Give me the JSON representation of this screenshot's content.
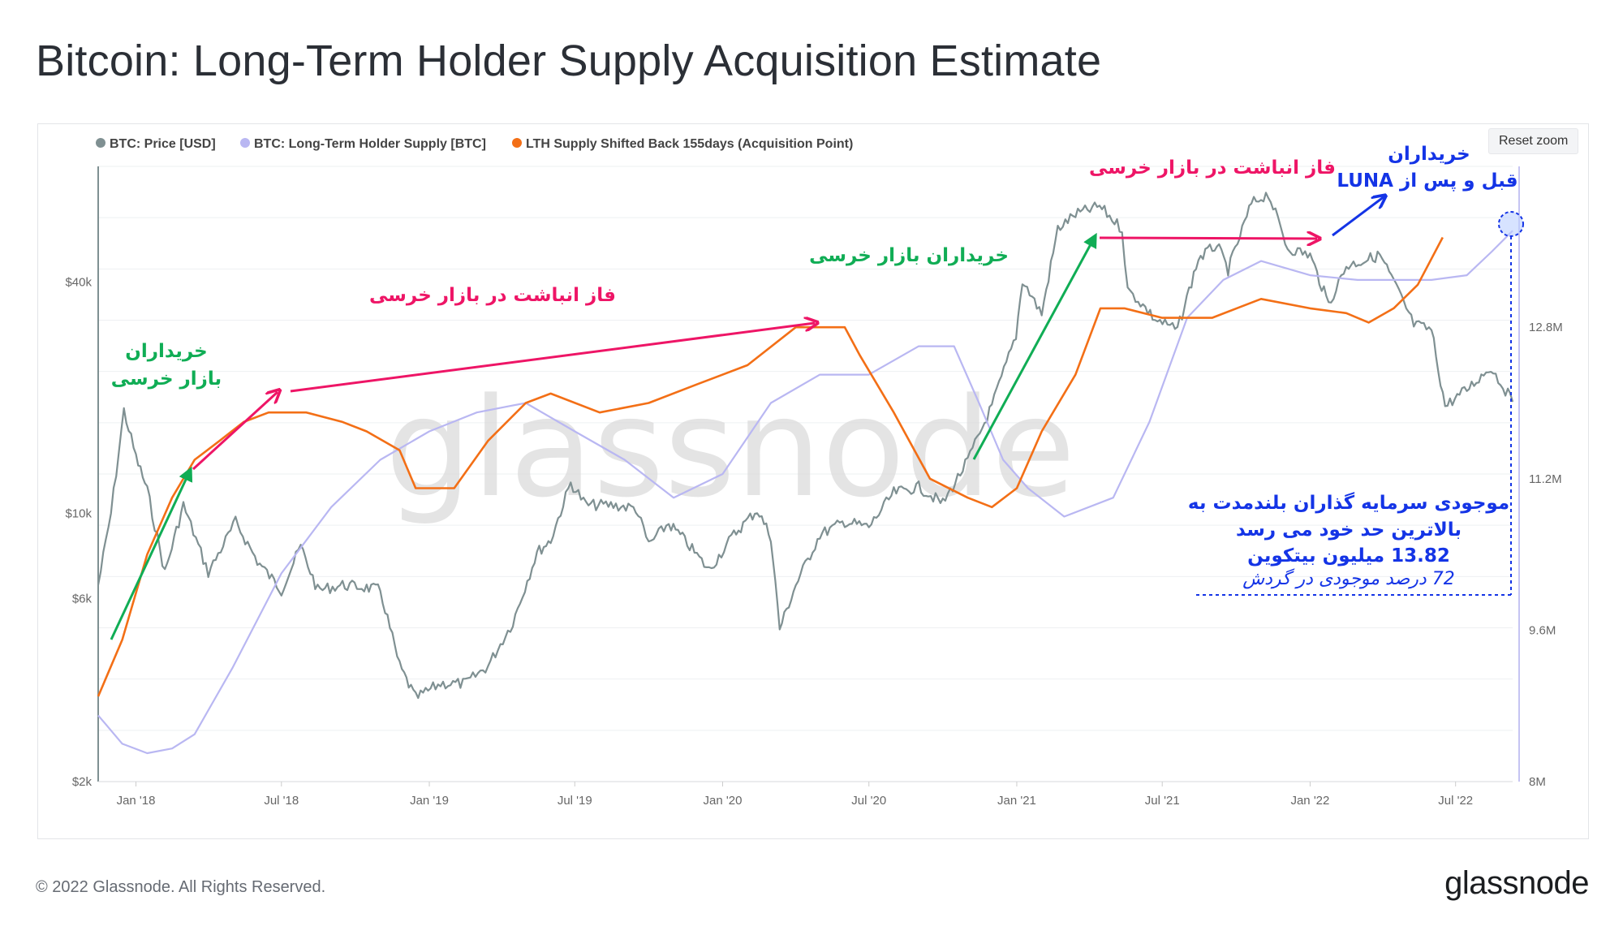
{
  "title": "Bitcoin: Long-Term Holder Supply Acquisition Estimate",
  "reset_zoom_label": "Reset zoom",
  "watermark": "glassnode",
  "footer": {
    "copyright": "© 2022 Glassnode. All Rights Reserved.",
    "logo": "glassnode"
  },
  "colors": {
    "price": "#7f9092",
    "lth_supply": "#b9b7f2",
    "acquisition": "#f36f16",
    "pink": "#ee1566",
    "green": "#10ad55",
    "blue": "#1434e6"
  },
  "annotations": {
    "buyers_bear_1_line1": "خریداران",
    "buyers_bear_1_line2": "بازار خرسی",
    "accum_phase_1": "فاز انباشت در بازار خرسی",
    "buyers_bear_2": "خریداران بازار خرسی",
    "accum_phase_2": "فاز انباشت در بازار خرسی",
    "luna_line1": "خریداران",
    "luna_line2": "قبل و پس از LUNA",
    "supply_line1": "موجودی سرمایه گذاران بلندمدت به",
    "supply_line2": "بالاترین حد خود می رسد",
    "supply_line3": "13.82 میلیون بیتکوین",
    "supply_line4": "72 درصد موجودی در گردش"
  },
  "chart_data": {
    "type": "line",
    "title": "Bitcoin: Long-Term Holder Supply Acquisition Estimate",
    "x_ticks": [
      "Jan '18",
      "Jul '18",
      "Jan '19",
      "Jul '19",
      "Jan '20",
      "Jul '20",
      "Jan '21",
      "Jul '21",
      "Jan '22",
      "Jul '22"
    ],
    "x_range": [
      "2017-11-15",
      "2022-09-10"
    ],
    "y_left": {
      "label": "",
      "scale": "log",
      "ticks": [
        "$2k",
        "$6k",
        "$10k",
        "$40k"
      ],
      "tick_values": [
        2000,
        6000,
        10000,
        40000
      ],
      "range": [
        2000,
        80000
      ]
    },
    "y_right": {
      "label": "",
      "ticks": [
        "8M",
        "9.6M",
        "11.2M",
        "12.8M"
      ],
      "tick_values": [
        8000000,
        9600000,
        11200000,
        12800000
      ],
      "range": [
        8000000,
        14500000
      ]
    },
    "legend_position": "top-left",
    "grid": true,
    "series": [
      {
        "name": "BTC: Price [USD]",
        "axis": "left",
        "x": [
          "2017-11-15",
          "2017-12-01",
          "2017-12-17",
          "2018-01-01",
          "2018-01-15",
          "2018-02-06",
          "2018-03-01",
          "2018-04-01",
          "2018-05-05",
          "2018-06-01",
          "2018-07-01",
          "2018-07-25",
          "2018-08-15",
          "2018-09-15",
          "2018-10-15",
          "2018-11-01",
          "2018-11-25",
          "2018-12-15",
          "2019-01-15",
          "2019-02-15",
          "2019-03-15",
          "2019-04-15",
          "2019-05-15",
          "2019-06-01",
          "2019-06-26",
          "2019-07-15",
          "2019-08-15",
          "2019-09-15",
          "2019-10-01",
          "2019-10-26",
          "2019-11-15",
          "2019-12-15",
          "2020-01-15",
          "2020-02-13",
          "2020-03-01",
          "2020-03-12",
          "2020-04-01",
          "2020-05-01",
          "2020-06-01",
          "2020-07-01",
          "2020-08-01",
          "2020-09-01",
          "2020-10-01",
          "2020-11-01",
          "2020-12-01",
          "2020-12-31",
          "2021-01-08",
          "2021-02-01",
          "2021-02-21",
          "2021-03-15",
          "2021-04-14",
          "2021-05-12",
          "2021-05-19",
          "2021-06-01",
          "2021-06-22",
          "2021-07-20",
          "2021-08-15",
          "2021-09-07",
          "2021-09-21",
          "2021-10-20",
          "2021-11-10",
          "2021-12-04",
          "2022-01-01",
          "2022-01-24",
          "2022-02-15",
          "2022-03-29",
          "2022-04-15",
          "2022-05-10",
          "2022-06-01",
          "2022-06-18",
          "2022-07-15",
          "2022-08-14",
          "2022-09-10"
        ],
        "values": [
          6500,
          10000,
          18500,
          14000,
          11500,
          7000,
          10500,
          7000,
          9500,
          7500,
          6300,
          8200,
          6300,
          6500,
          6400,
          6300,
          4000,
          3300,
          3600,
          3600,
          4000,
          5200,
          7900,
          8500,
          12000,
          10500,
          10500,
          10300,
          8300,
          9400,
          8500,
          7100,
          8800,
          10200,
          8700,
          5000,
          6500,
          8800,
          9500,
          9200,
          11300,
          11700,
          10600,
          13700,
          19000,
          29000,
          40500,
          33000,
          55000,
          60000,
          63000,
          55000,
          38000,
          36000,
          32000,
          30000,
          46000,
          50000,
          43000,
          64000,
          68000,
          49000,
          47000,
          35000,
          44000,
          47000,
          40000,
          31000,
          30000,
          19000,
          21000,
          24000,
          19500
        ]
      },
      {
        "name": "BTC: Long-Term Holder Supply [BTC]",
        "axis": "right",
        "x": [
          "2017-11-15",
          "2017-12-15",
          "2018-01-15",
          "2018-02-15",
          "2018-03-15",
          "2018-05-01",
          "2018-07-01",
          "2018-09-01",
          "2018-11-01",
          "2019-01-01",
          "2019-03-01",
          "2019-05-01",
          "2019-07-01",
          "2019-09-01",
          "2019-11-01",
          "2020-01-01",
          "2020-03-01",
          "2020-05-01",
          "2020-07-01",
          "2020-09-01",
          "2020-10-15",
          "2020-11-15",
          "2020-12-15",
          "2021-01-15",
          "2021-03-01",
          "2021-05-01",
          "2021-06-15",
          "2021-08-01",
          "2021-09-15",
          "2021-11-01",
          "2022-01-01",
          "2022-03-01",
          "2022-04-15",
          "2022-06-01",
          "2022-07-15",
          "2022-08-15",
          "2022-09-10"
        ],
        "values": [
          8700000,
          8400000,
          8300000,
          8350000,
          8500000,
          9200000,
          10200000,
          10900000,
          11400000,
          11700000,
          11900000,
          12000000,
          11700000,
          11400000,
          11000000,
          11250000,
          12000000,
          12300000,
          12300000,
          12600000,
          12600000,
          12000000,
          11400000,
          11100000,
          10800000,
          11000000,
          11800000,
          12900000,
          13300000,
          13500000,
          13350000,
          13300000,
          13300000,
          13300000,
          13350000,
          13600000,
          13820000
        ]
      },
      {
        "name": "LTH Supply Shifted Back 155days (Acquisition Point)",
        "axis": "right",
        "x": [
          "2017-11-15",
          "2017-12-15",
          "2018-01-15",
          "2018-02-15",
          "2018-03-15",
          "2018-04-15",
          "2018-05-15",
          "2018-06-15",
          "2018-08-01",
          "2018-09-15",
          "2018-10-15",
          "2018-11-25",
          "2018-12-15",
          "2019-02-01",
          "2019-03-15",
          "2019-05-01",
          "2019-06-01",
          "2019-08-01",
          "2019-10-01",
          "2019-12-01",
          "2020-02-01",
          "2020-04-01",
          "2020-06-01",
          "2020-06-20",
          "2020-08-01",
          "2020-09-15",
          "2020-11-01",
          "2020-12-01",
          "2021-01-01",
          "2021-02-01",
          "2021-03-15",
          "2021-04-15",
          "2021-05-15",
          "2021-07-01",
          "2021-09-01",
          "2021-11-01",
          "2022-01-01",
          "2022-02-15",
          "2022-03-15",
          "2022-04-15",
          "2022-05-15",
          "2022-06-15"
        ],
        "values": [
          8900000,
          9500000,
          10400000,
          11000000,
          11400000,
          11600000,
          11800000,
          11900000,
          11900000,
          11800000,
          11700000,
          11500000,
          11100000,
          11100000,
          11600000,
          12000000,
          12100000,
          11900000,
          12000000,
          12200000,
          12400000,
          12800000,
          12800000,
          12500000,
          11900000,
          11200000,
          11000000,
          10900000,
          11100000,
          11700000,
          12300000,
          13000000,
          13000000,
          12900000,
          12900000,
          13100000,
          13000000,
          12950000,
          12850000,
          13000000,
          13250000,
          13750000
        ]
      }
    ]
  }
}
